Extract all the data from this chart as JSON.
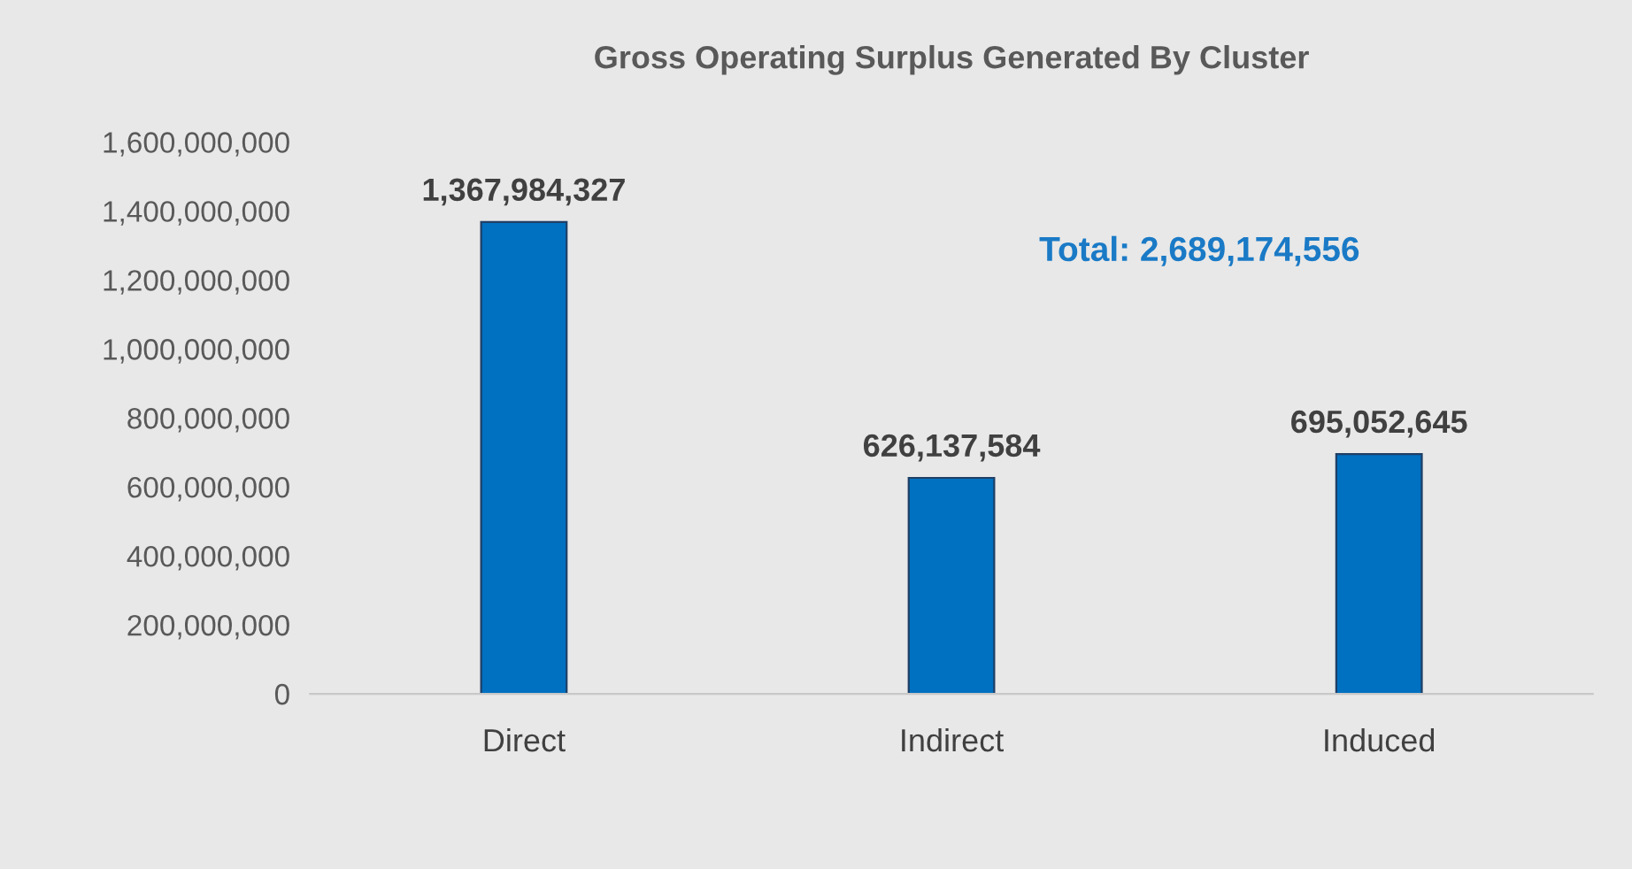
{
  "chart_data": {
    "type": "bar",
    "title": "Gross Operating Surplus Generated By Cluster",
    "categories": [
      "Direct",
      "Indirect",
      "Induced"
    ],
    "values": [
      1367984327,
      626137584,
      695052645
    ],
    "color": "#0070c0",
    "value_labels": [
      "1,367,984,327",
      "626,137,584",
      "695,052,645"
    ],
    "annotations": [
      "Total: 2,689,174,556"
    ],
    "ylim": [
      0,
      1600000000
    ],
    "yticks": [
      {
        "value": 0,
        "label": "0"
      },
      {
        "value": 200000000,
        "label": "200,000,000"
      },
      {
        "value": 400000000,
        "label": "400,000,000"
      },
      {
        "value": 600000000,
        "label": "600,000,000"
      },
      {
        "value": 800000000,
        "label": "800,000,000"
      },
      {
        "value": 1000000000,
        "label": "1,000,000,000"
      },
      {
        "value": 1200000000,
        "label": "1,200,000,000"
      },
      {
        "value": 1400000000,
        "label": "1,400,000,000"
      },
      {
        "value": 1600000000,
        "label": "1,600,000,000"
      }
    ],
    "grid": false,
    "legend": false
  }
}
